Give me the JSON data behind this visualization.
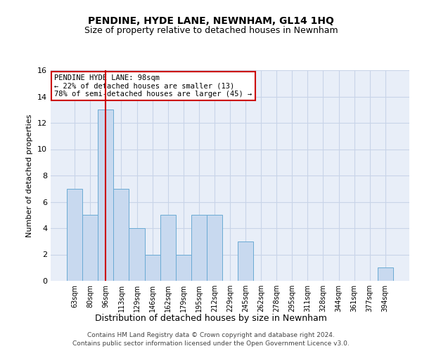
{
  "title": "PENDINE, HYDE LANE, NEWNHAM, GL14 1HQ",
  "subtitle": "Size of property relative to detached houses in Newnham",
  "xlabel": "Distribution of detached houses by size in Newnham",
  "ylabel": "Number of detached properties",
  "categories": [
    "63sqm",
    "80sqm",
    "96sqm",
    "113sqm",
    "129sqm",
    "146sqm",
    "162sqm",
    "179sqm",
    "195sqm",
    "212sqm",
    "229sqm",
    "245sqm",
    "262sqm",
    "278sqm",
    "295sqm",
    "311sqm",
    "328sqm",
    "344sqm",
    "361sqm",
    "377sqm",
    "394sqm"
  ],
  "values": [
    7,
    5,
    13,
    7,
    4,
    2,
    5,
    2,
    5,
    5,
    0,
    3,
    0,
    0,
    0,
    0,
    0,
    0,
    0,
    0,
    1
  ],
  "bar_color": "#c8d9ef",
  "bar_edge_color": "#6aaad4",
  "grid_color": "#c8d4e8",
  "background_color": "#e8eef8",
  "highlight_bar_index": 2,
  "highlight_line_color": "#cc0000",
  "ylim": [
    0,
    16
  ],
  "yticks": [
    0,
    2,
    4,
    6,
    8,
    10,
    12,
    14,
    16
  ],
  "annotation_text": "PENDINE HYDE LANE: 98sqm\n← 22% of detached houses are smaller (13)\n78% of semi-detached houses are larger (45) →",
  "annotation_box_facecolor": "#ffffff",
  "annotation_box_edgecolor": "#cc0000",
  "footer_line1": "Contains HM Land Registry data © Crown copyright and database right 2024.",
  "footer_line2": "Contains public sector information licensed under the Open Government Licence v3.0."
}
